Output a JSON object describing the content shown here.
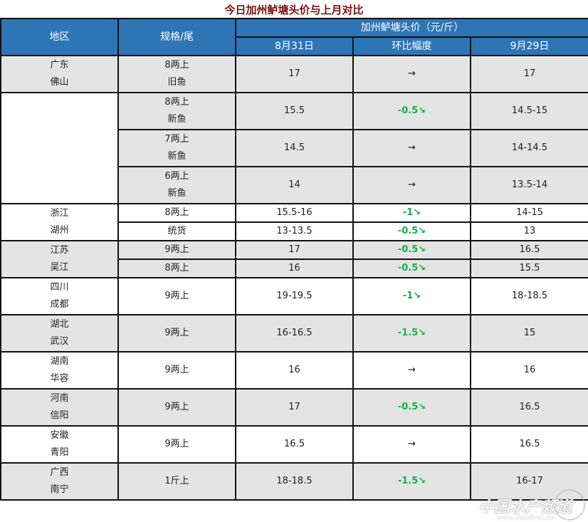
{
  "title": "今日加州鲈塘头价与上月对比",
  "header": {
    "region": "地区",
    "spec": "规格/尾",
    "price_group": "加州鲈塘头价（元/斤）",
    "col_prev": "8月31日",
    "col_change": "环比幅度",
    "col_curr": "9月29日"
  },
  "colors": {
    "header_bg": "#2e75b6",
    "title": "#7b1010",
    "down": "#12b04a",
    "gray_row": "#e4e4e4"
  },
  "groups": [
    {
      "region": [
        "广东",
        "佛山"
      ],
      "shade": "gray",
      "rows": [
        {
          "spec": [
            "8两上",
            "旧鱼"
          ],
          "prev": "17",
          "change": "→",
          "dir": "flat",
          "curr": "17"
        },
        {
          "spec": [
            "8两上",
            "新鱼"
          ],
          "prev": "15.5",
          "change": "-0.5↘",
          "dir": "down",
          "curr": "14.5-15"
        },
        {
          "spec": [
            "7两上",
            "新鱼"
          ],
          "prev": "14.5",
          "change": "→",
          "dir": "flat",
          "curr": "14-14.5"
        },
        {
          "spec": [
            "6两上",
            "新鱼"
          ],
          "prev": "14",
          "change": "→",
          "dir": "flat",
          "curr": "13.5-14"
        }
      ]
    },
    {
      "region": [
        "浙江",
        "湖州"
      ],
      "shade": "white",
      "rows": [
        {
          "spec": [
            "8两上"
          ],
          "prev": "15.5-16",
          "change": "-1↘",
          "dir": "down",
          "curr": "14-15"
        },
        {
          "spec": [
            "统货"
          ],
          "prev": "13-13.5",
          "change": "-0.5↘",
          "dir": "down",
          "curr": "13"
        }
      ]
    },
    {
      "region": [
        "江苏",
        "吴江"
      ],
      "shade": "gray",
      "rows": [
        {
          "spec": [
            "9两上"
          ],
          "prev": "17",
          "change": "-0.5↘",
          "dir": "down",
          "curr": "16.5"
        },
        {
          "spec": [
            "8两上"
          ],
          "prev": "16",
          "change": "-0.5↘",
          "dir": "down",
          "curr": "15.5"
        }
      ]
    },
    {
      "region": [
        "四川",
        "成都"
      ],
      "shade": "white",
      "rows": [
        {
          "spec": [
            "9两上"
          ],
          "prev": "19-19.5",
          "change": "-1↘",
          "dir": "down",
          "curr": "18-18.5"
        }
      ]
    },
    {
      "region": [
        "湖北",
        "武汉"
      ],
      "shade": "gray",
      "rows": [
        {
          "spec": [
            "9两上"
          ],
          "prev": "16-16.5",
          "change": "-1.5↘",
          "dir": "down",
          "curr": "15"
        }
      ]
    },
    {
      "region": [
        "湖南",
        "华容"
      ],
      "shade": "white",
      "rows": [
        {
          "spec": [
            "9两上"
          ],
          "prev": "16",
          "change": "→",
          "dir": "flat",
          "curr": "16"
        }
      ]
    },
    {
      "region": [
        "河南",
        "信阳"
      ],
      "shade": "gray",
      "rows": [
        {
          "spec": [
            "9两上"
          ],
          "prev": "17",
          "change": "-0.5↘",
          "dir": "down",
          "curr": "16.5"
        }
      ]
    },
    {
      "region": [
        "安徽",
        "青阳"
      ],
      "shade": "white",
      "rows": [
        {
          "spec": [
            "9两上"
          ],
          "prev": "16.5",
          "change": "→",
          "dir": "flat",
          "curr": "16.5"
        }
      ]
    },
    {
      "region": [
        "广西",
        "南宁"
      ],
      "shade": "gray",
      "rows": [
        {
          "spec": [
            "1斤上"
          ],
          "prev": "18-18.5",
          "change": "-1.5↘",
          "dir": "down",
          "curr": "16-17"
        }
      ]
    }
  ],
  "watermark": {
    "text": "中国水产频道",
    "url": "www.fishfirst.cn"
  }
}
